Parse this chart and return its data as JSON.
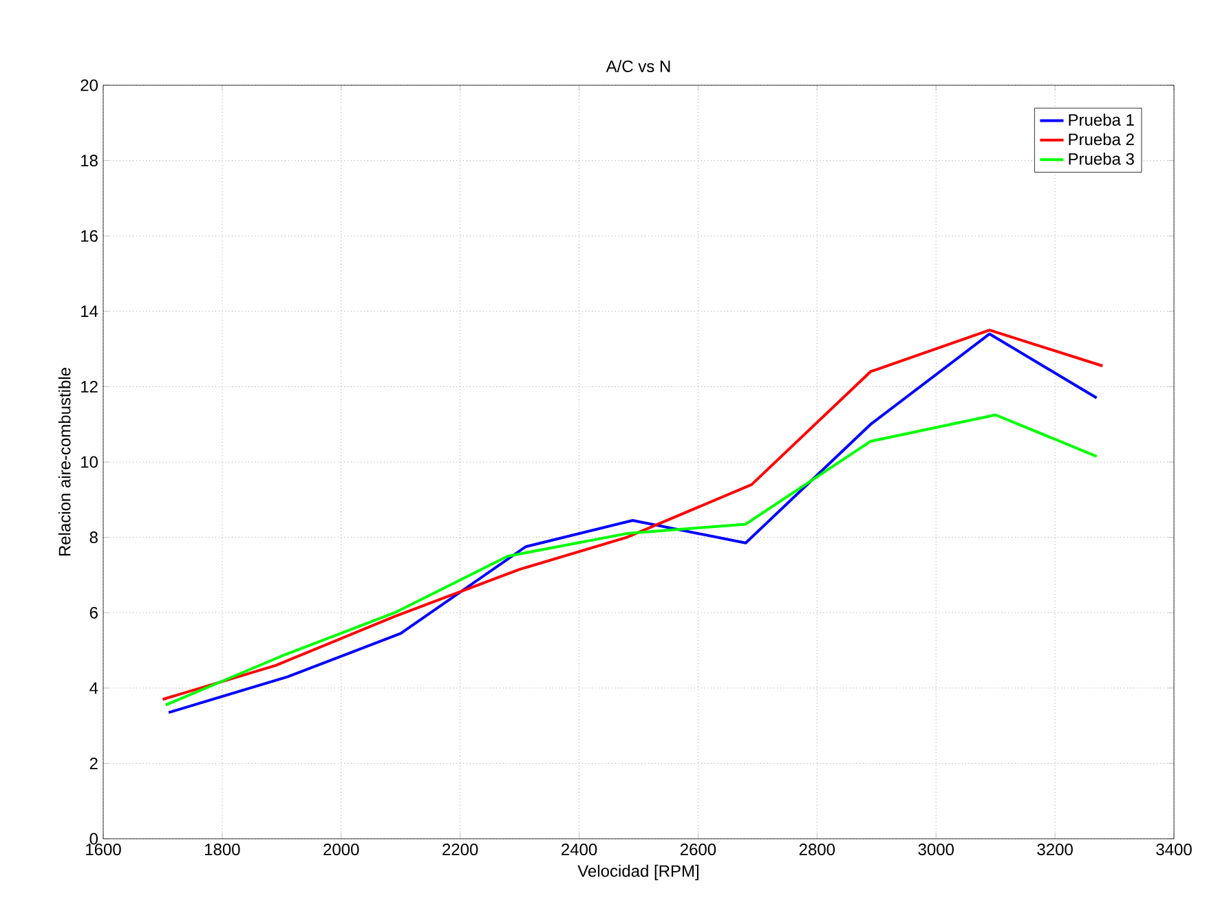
{
  "chart_data": {
    "type": "line",
    "title": "A/C vs N",
    "xlabel": "Velocidad [RPM]",
    "ylabel": "Relacion aire-combustible",
    "xlim": [
      1600,
      3400
    ],
    "xticks": [
      1600,
      1800,
      2000,
      2200,
      2400,
      2600,
      2800,
      3000,
      3200,
      3400
    ],
    "ylim": [
      0,
      20
    ],
    "yticks": [
      0,
      2,
      4,
      6,
      8,
      10,
      12,
      14,
      16,
      18,
      20
    ],
    "grid": true,
    "legend": "top right",
    "marker": "none",
    "line_style": "solid",
    "series": [
      {
        "name": "Prueba 1",
        "color": "#0000ff",
        "x": [
          1710,
          1910,
          2100,
          2310,
          2490,
          2680,
          2890,
          3090,
          3270
        ],
        "values": [
          3.35,
          4.3,
          5.45,
          7.75,
          8.45,
          7.85,
          11.0,
          13.4,
          11.7
        ]
      },
      {
        "name": "Prueba 2",
        "color": "#ff0000",
        "x": [
          1700,
          1890,
          2090,
          2300,
          2480,
          2690,
          2890,
          3090,
          3280
        ],
        "values": [
          3.7,
          4.6,
          5.9,
          7.15,
          8.0,
          9.4,
          12.4,
          13.5,
          12.55
        ]
      },
      {
        "name": "Prueba 3",
        "color": "#00ff00",
        "x": [
          1705,
          1900,
          2090,
          2280,
          2480,
          2680,
          2890,
          3100,
          3270
        ],
        "values": [
          3.55,
          4.85,
          6.0,
          7.5,
          8.1,
          8.35,
          10.55,
          11.25,
          10.15
        ]
      }
    ]
  }
}
